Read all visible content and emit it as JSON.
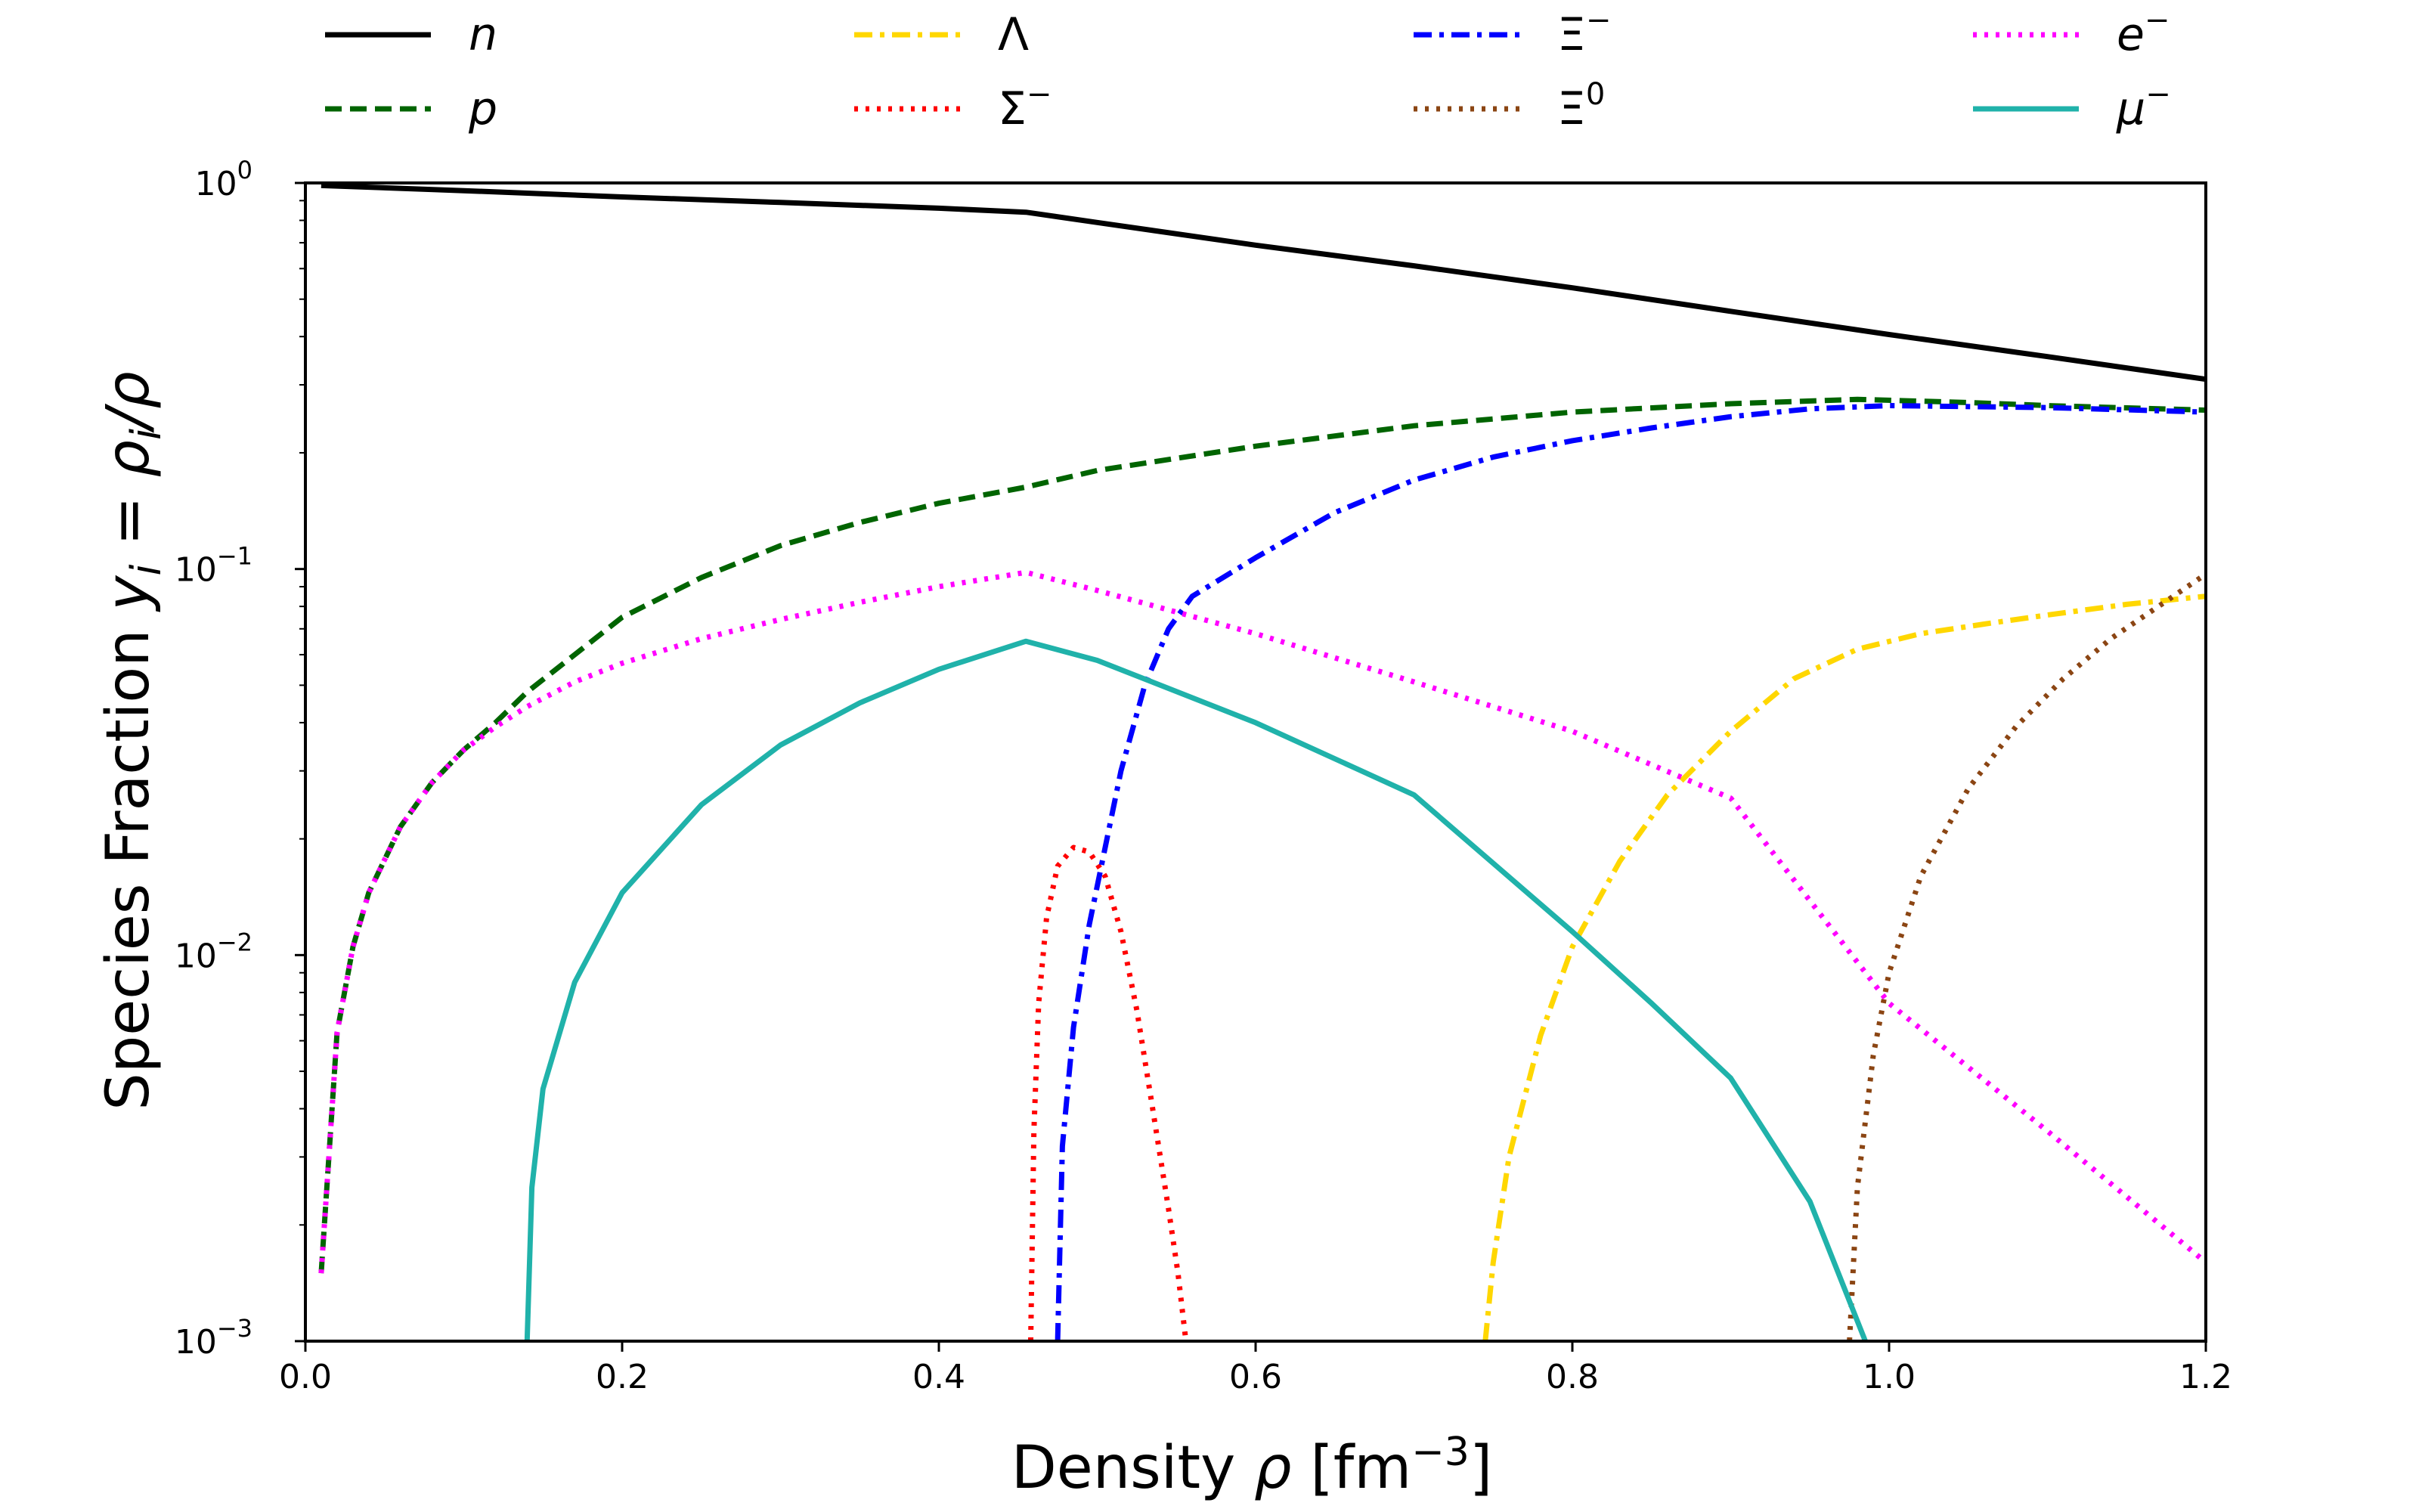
{
  "chart_data": {
    "type": "line",
    "xlabel": {
      "text": "Density ",
      "symbol": "ρ",
      "unit": " [fm",
      "unit_exp": "−3",
      "unit_close": "]"
    },
    "ylabel": {
      "text": "Species Fraction ",
      "yi": "y",
      "sub": "i",
      "eq": " = ",
      "rho": "ρ",
      "rho_sub": "i",
      "slash": "/",
      "rho2": "ρ"
    },
    "xlim": [
      0.0,
      1.2
    ],
    "ylim": [
      0.001,
      1
    ],
    "yscale": "log",
    "grid": false,
    "legend_placement": "top, outside plot, 4 columns",
    "x_ticks": [
      "0.0",
      "0.2",
      "0.4",
      "0.6",
      "0.8",
      "1.0",
      "1.2"
    ],
    "y_ticks": [
      {
        "value": 0.001,
        "base": "10",
        "exp": "−3"
      },
      {
        "value": 0.01,
        "base": "10",
        "exp": "−2"
      },
      {
        "value": 0.1,
        "base": "10",
        "exp": "−1"
      },
      {
        "value": 1,
        "base": "10",
        "exp": "0"
      }
    ],
    "series": [
      {
        "name": "n",
        "label_main": "n",
        "label_sup": "",
        "italic": true,
        "color": "#000000",
        "style": "solid",
        "points": [
          [
            0.01,
            0.985
          ],
          [
            0.1,
            0.955
          ],
          [
            0.2,
            0.92
          ],
          [
            0.3,
            0.89
          ],
          [
            0.4,
            0.86
          ],
          [
            0.455,
            0.84
          ],
          [
            0.5,
            0.79
          ],
          [
            0.6,
            0.69
          ],
          [
            0.7,
            0.61
          ],
          [
            0.8,
            0.535
          ],
          [
            0.9,
            0.465
          ],
          [
            1.0,
            0.405
          ],
          [
            1.1,
            0.355
          ],
          [
            1.2,
            0.31
          ]
        ]
      },
      {
        "name": "p",
        "label_main": "p",
        "label_sup": "",
        "italic": true,
        "color": "#006400",
        "style": "dashed",
        "points": [
          [
            0.01,
            0.0015
          ],
          [
            0.02,
            0.0063
          ],
          [
            0.03,
            0.0105
          ],
          [
            0.04,
            0.0145
          ],
          [
            0.06,
            0.0215
          ],
          [
            0.08,
            0.028
          ],
          [
            0.1,
            0.034
          ],
          [
            0.12,
            0.04
          ],
          [
            0.14,
            0.048
          ],
          [
            0.17,
            0.06
          ],
          [
            0.2,
            0.075
          ],
          [
            0.25,
            0.095
          ],
          [
            0.3,
            0.115
          ],
          [
            0.35,
            0.132
          ],
          [
            0.4,
            0.148
          ],
          [
            0.455,
            0.163
          ],
          [
            0.5,
            0.18
          ],
          [
            0.6,
            0.208
          ],
          [
            0.7,
            0.235
          ],
          [
            0.8,
            0.255
          ],
          [
            0.9,
            0.268
          ],
          [
            0.98,
            0.275
          ],
          [
            1.05,
            0.27
          ],
          [
            1.1,
            0.265
          ],
          [
            1.2,
            0.258
          ]
        ]
      },
      {
        "name": "Λ",
        "label_main": "Λ",
        "label_sup": "",
        "italic": false,
        "color": "#FFD700",
        "style": "dashdot",
        "points": [
          [
            0.745,
            0.001
          ],
          [
            0.75,
            0.0016
          ],
          [
            0.76,
            0.003
          ],
          [
            0.78,
            0.0062
          ],
          [
            0.8,
            0.0105
          ],
          [
            0.83,
            0.0175
          ],
          [
            0.86,
            0.026
          ],
          [
            0.9,
            0.038
          ],
          [
            0.94,
            0.052
          ],
          [
            0.98,
            0.062
          ],
          [
            1.02,
            0.068
          ],
          [
            1.06,
            0.072
          ],
          [
            1.1,
            0.076
          ],
          [
            1.15,
            0.081
          ],
          [
            1.2,
            0.085
          ]
        ]
      },
      {
        "name": "Σ⁻",
        "label_main": "Σ",
        "label_sup": "−",
        "italic": false,
        "color": "#FF0000",
        "style": "dotted",
        "points": [
          [
            0.458,
            0.001
          ],
          [
            0.46,
            0.0035
          ],
          [
            0.463,
            0.0075
          ],
          [
            0.468,
            0.0125
          ],
          [
            0.475,
            0.017
          ],
          [
            0.485,
            0.019
          ],
          [
            0.495,
            0.0185
          ],
          [
            0.505,
            0.016
          ],
          [
            0.515,
            0.0115
          ],
          [
            0.525,
            0.0072
          ],
          [
            0.535,
            0.004
          ],
          [
            0.545,
            0.0022
          ],
          [
            0.551,
            0.0015
          ],
          [
            0.556,
            0.001
          ]
        ]
      },
      {
        "name": "Ξ⁻",
        "label_main": "Ξ",
        "label_sup": "−",
        "italic": false,
        "color": "#0000FF",
        "style": "dashdot",
        "points": [
          [
            0.475,
            0.001
          ],
          [
            0.478,
            0.0032
          ],
          [
            0.485,
            0.0065
          ],
          [
            0.495,
            0.012
          ],
          [
            0.505,
            0.019
          ],
          [
            0.515,
            0.03
          ],
          [
            0.53,
            0.05
          ],
          [
            0.545,
            0.07
          ],
          [
            0.56,
            0.085
          ],
          [
            0.6,
            0.107
          ],
          [
            0.65,
            0.14
          ],
          [
            0.7,
            0.17
          ],
          [
            0.75,
            0.195
          ],
          [
            0.8,
            0.215
          ],
          [
            0.85,
            0.232
          ],
          [
            0.9,
            0.248
          ],
          [
            0.95,
            0.26
          ],
          [
            1.0,
            0.265
          ],
          [
            1.1,
            0.262
          ],
          [
            1.2,
            0.255
          ]
        ]
      },
      {
        "name": "Ξ⁰",
        "label_main": "Ξ",
        "label_sup": "0",
        "italic": false,
        "color": "#8B4513",
        "style": "dotted",
        "points": [
          [
            0.975,
            0.001
          ],
          [
            0.98,
            0.0025
          ],
          [
            0.99,
            0.0055
          ],
          [
            1.0,
            0.009
          ],
          [
            1.02,
            0.016
          ],
          [
            1.05,
            0.027
          ],
          [
            1.08,
            0.039
          ],
          [
            1.11,
            0.052
          ],
          [
            1.14,
            0.066
          ],
          [
            1.17,
            0.08
          ],
          [
            1.2,
            0.097
          ]
        ]
      },
      {
        "name": "e⁻",
        "label_main": "e",
        "label_sup": "−",
        "italic": true,
        "color": "#FF00FF",
        "style": "dotted",
        "points": [
          [
            0.01,
            0.0015
          ],
          [
            0.02,
            0.0063
          ],
          [
            0.03,
            0.0105
          ],
          [
            0.04,
            0.0145
          ],
          [
            0.06,
            0.0215
          ],
          [
            0.08,
            0.028
          ],
          [
            0.1,
            0.034
          ],
          [
            0.12,
            0.039
          ],
          [
            0.14,
            0.044
          ],
          [
            0.17,
            0.051
          ],
          [
            0.2,
            0.057
          ],
          [
            0.25,
            0.066
          ],
          [
            0.3,
            0.074
          ],
          [
            0.35,
            0.082
          ],
          [
            0.4,
            0.09
          ],
          [
            0.455,
            0.098
          ],
          [
            0.5,
            0.088
          ],
          [
            0.6,
            0.068
          ],
          [
            0.7,
            0.051
          ],
          [
            0.8,
            0.038
          ],
          [
            0.9,
            0.0255
          ],
          [
            1.0,
            0.0075
          ],
          [
            1.1,
            0.0035
          ],
          [
            1.2,
            0.0016
          ]
        ]
      },
      {
        "name": "μ⁻",
        "label_main": "μ",
        "label_sup": "−",
        "italic": true,
        "color": "#20B2AA",
        "style": "solid",
        "points": [
          [
            0.14,
            0.001
          ],
          [
            0.143,
            0.0025
          ],
          [
            0.15,
            0.0045
          ],
          [
            0.17,
            0.0085
          ],
          [
            0.2,
            0.0145
          ],
          [
            0.25,
            0.0245
          ],
          [
            0.3,
            0.035
          ],
          [
            0.35,
            0.045
          ],
          [
            0.4,
            0.055
          ],
          [
            0.455,
            0.065
          ],
          [
            0.5,
            0.058
          ],
          [
            0.6,
            0.04
          ],
          [
            0.7,
            0.026
          ],
          [
            0.8,
            0.0115
          ],
          [
            0.85,
            0.0075
          ],
          [
            0.9,
            0.0048
          ],
          [
            0.95,
            0.0023
          ],
          [
            0.985,
            0.001
          ]
        ]
      }
    ]
  }
}
